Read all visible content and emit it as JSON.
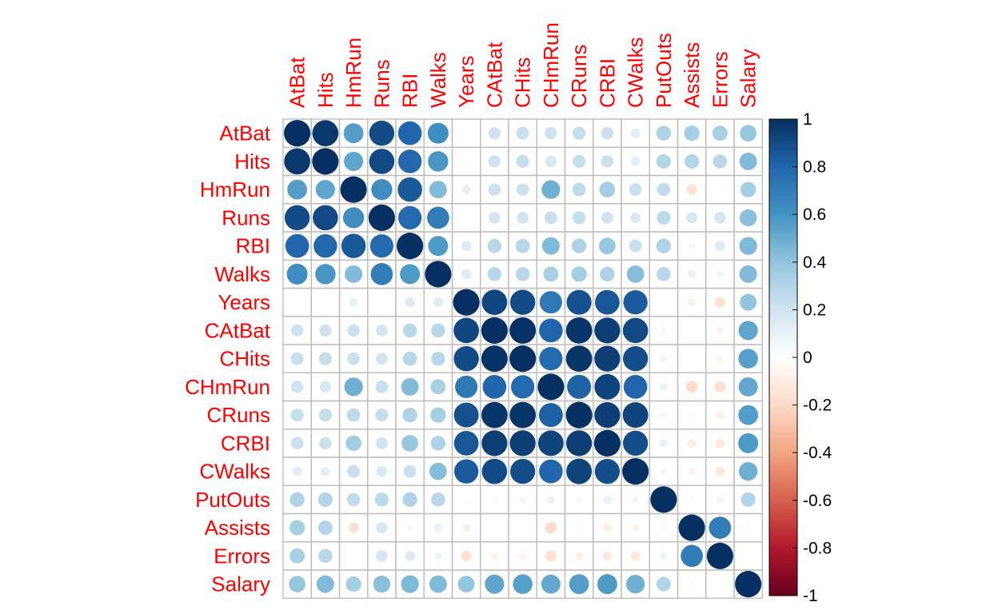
{
  "chart_data": {
    "type": "heatmap",
    "variables": [
      "AtBat",
      "Hits",
      "HmRun",
      "Runs",
      "RBI",
      "Walks",
      "Years",
      "CAtBat",
      "CHits",
      "CHmRun",
      "CRuns",
      "CRBI",
      "CWalks",
      "PutOuts",
      "Assists",
      "Errors",
      "Salary"
    ],
    "matrix": [
      [
        1.0,
        0.97,
        0.56,
        0.9,
        0.8,
        0.62,
        0.01,
        0.21,
        0.23,
        0.21,
        0.24,
        0.22,
        0.13,
        0.31,
        0.34,
        0.33,
        0.39
      ],
      [
        0.97,
        1.0,
        0.53,
        0.91,
        0.79,
        0.59,
        0.02,
        0.21,
        0.24,
        0.18,
        0.24,
        0.22,
        0.12,
        0.3,
        0.3,
        0.28,
        0.44
      ],
      [
        0.56,
        0.53,
        1.0,
        0.63,
        0.85,
        0.44,
        0.11,
        0.22,
        0.22,
        0.49,
        0.26,
        0.35,
        0.23,
        0.25,
        -0.16,
        -0.01,
        0.34
      ],
      [
        0.9,
        0.91,
        0.63,
        1.0,
        0.78,
        0.7,
        0.0,
        0.19,
        0.2,
        0.23,
        0.24,
        0.2,
        0.16,
        0.27,
        0.18,
        0.19,
        0.42
      ],
      [
        0.8,
        0.79,
        0.85,
        0.78,
        1.0,
        0.57,
        0.15,
        0.28,
        0.29,
        0.44,
        0.31,
        0.39,
        0.23,
        0.31,
        0.06,
        0.15,
        0.45
      ],
      [
        0.62,
        0.59,
        0.44,
        0.7,
        0.57,
        1.0,
        0.14,
        0.28,
        0.28,
        0.33,
        0.34,
        0.31,
        0.43,
        0.28,
        0.1,
        0.08,
        0.44
      ],
      [
        0.01,
        0.02,
        0.11,
        0.0,
        0.15,
        0.14,
        1.0,
        0.92,
        0.9,
        0.72,
        0.88,
        0.86,
        0.84,
        -0.02,
        -0.09,
        -0.16,
        0.4
      ],
      [
        0.21,
        0.21,
        0.22,
        0.19,
        0.28,
        0.28,
        0.92,
        1.0,
        0.99,
        0.8,
        0.98,
        0.95,
        0.91,
        0.05,
        -0.01,
        -0.07,
        0.53
      ],
      [
        0.23,
        0.24,
        0.22,
        0.2,
        0.29,
        0.28,
        0.9,
        0.99,
        1.0,
        0.78,
        0.98,
        0.95,
        0.89,
        0.07,
        -0.01,
        -0.07,
        0.55
      ],
      [
        0.21,
        0.18,
        0.49,
        0.23,
        0.44,
        0.33,
        0.72,
        0.8,
        0.78,
        1.0,
        0.82,
        0.93,
        0.8,
        0.09,
        -0.19,
        -0.17,
        0.52
      ],
      [
        0.24,
        0.24,
        0.26,
        0.24,
        0.31,
        0.34,
        0.88,
        0.98,
        0.98,
        0.82,
        1.0,
        0.95,
        0.93,
        0.06,
        -0.04,
        -0.09,
        0.56
      ],
      [
        0.22,
        0.22,
        0.35,
        0.2,
        0.39,
        0.31,
        0.86,
        0.95,
        0.95,
        0.93,
        0.95,
        1.0,
        0.89,
        0.1,
        -0.1,
        -0.12,
        0.57
      ],
      [
        0.13,
        0.12,
        0.23,
        0.16,
        0.23,
        0.43,
        0.84,
        0.91,
        0.89,
        0.8,
        0.93,
        0.89,
        1.0,
        0.06,
        -0.07,
        -0.13,
        0.49
      ],
      [
        0.31,
        0.3,
        0.25,
        0.27,
        0.31,
        0.28,
        -0.02,
        0.05,
        0.07,
        0.09,
        0.06,
        0.1,
        0.06,
        1.0,
        -0.04,
        0.08,
        0.3
      ],
      [
        0.34,
        0.3,
        -0.16,
        0.18,
        0.06,
        0.1,
        -0.09,
        -0.01,
        -0.01,
        -0.19,
        -0.04,
        -0.1,
        -0.07,
        -0.04,
        1.0,
        0.7,
        0.03
      ],
      [
        0.33,
        0.28,
        -0.01,
        0.19,
        0.15,
        0.08,
        -0.16,
        -0.07,
        -0.07,
        -0.17,
        -0.09,
        -0.12,
        -0.13,
        0.08,
        0.7,
        1.0,
        -0.01
      ],
      [
        0.39,
        0.44,
        0.34,
        0.42,
        0.45,
        0.44,
        0.4,
        0.53,
        0.55,
        0.52,
        0.56,
        0.57,
        0.49,
        0.3,
        0.03,
        -0.01,
        1.0
      ]
    ],
    "colorbar_ticks": [
      "1",
      "0.8",
      "0.6",
      "0.4",
      "0.2",
      "0",
      "-0.2",
      "-0.4",
      "-0.6",
      "-0.8",
      "-1"
    ],
    "colorbar_range": [
      -1,
      1
    ],
    "color_stops": [
      "#67001F",
      "#B2182B",
      "#D6604D",
      "#F4A582",
      "#FDDBC7",
      "#FFFFFF",
      "#D1E5F0",
      "#92C5DE",
      "#4393C3",
      "#2166AC",
      "#053061"
    ],
    "label_color": "#FF0000",
    "grid_color": "#BEBEBE"
  }
}
